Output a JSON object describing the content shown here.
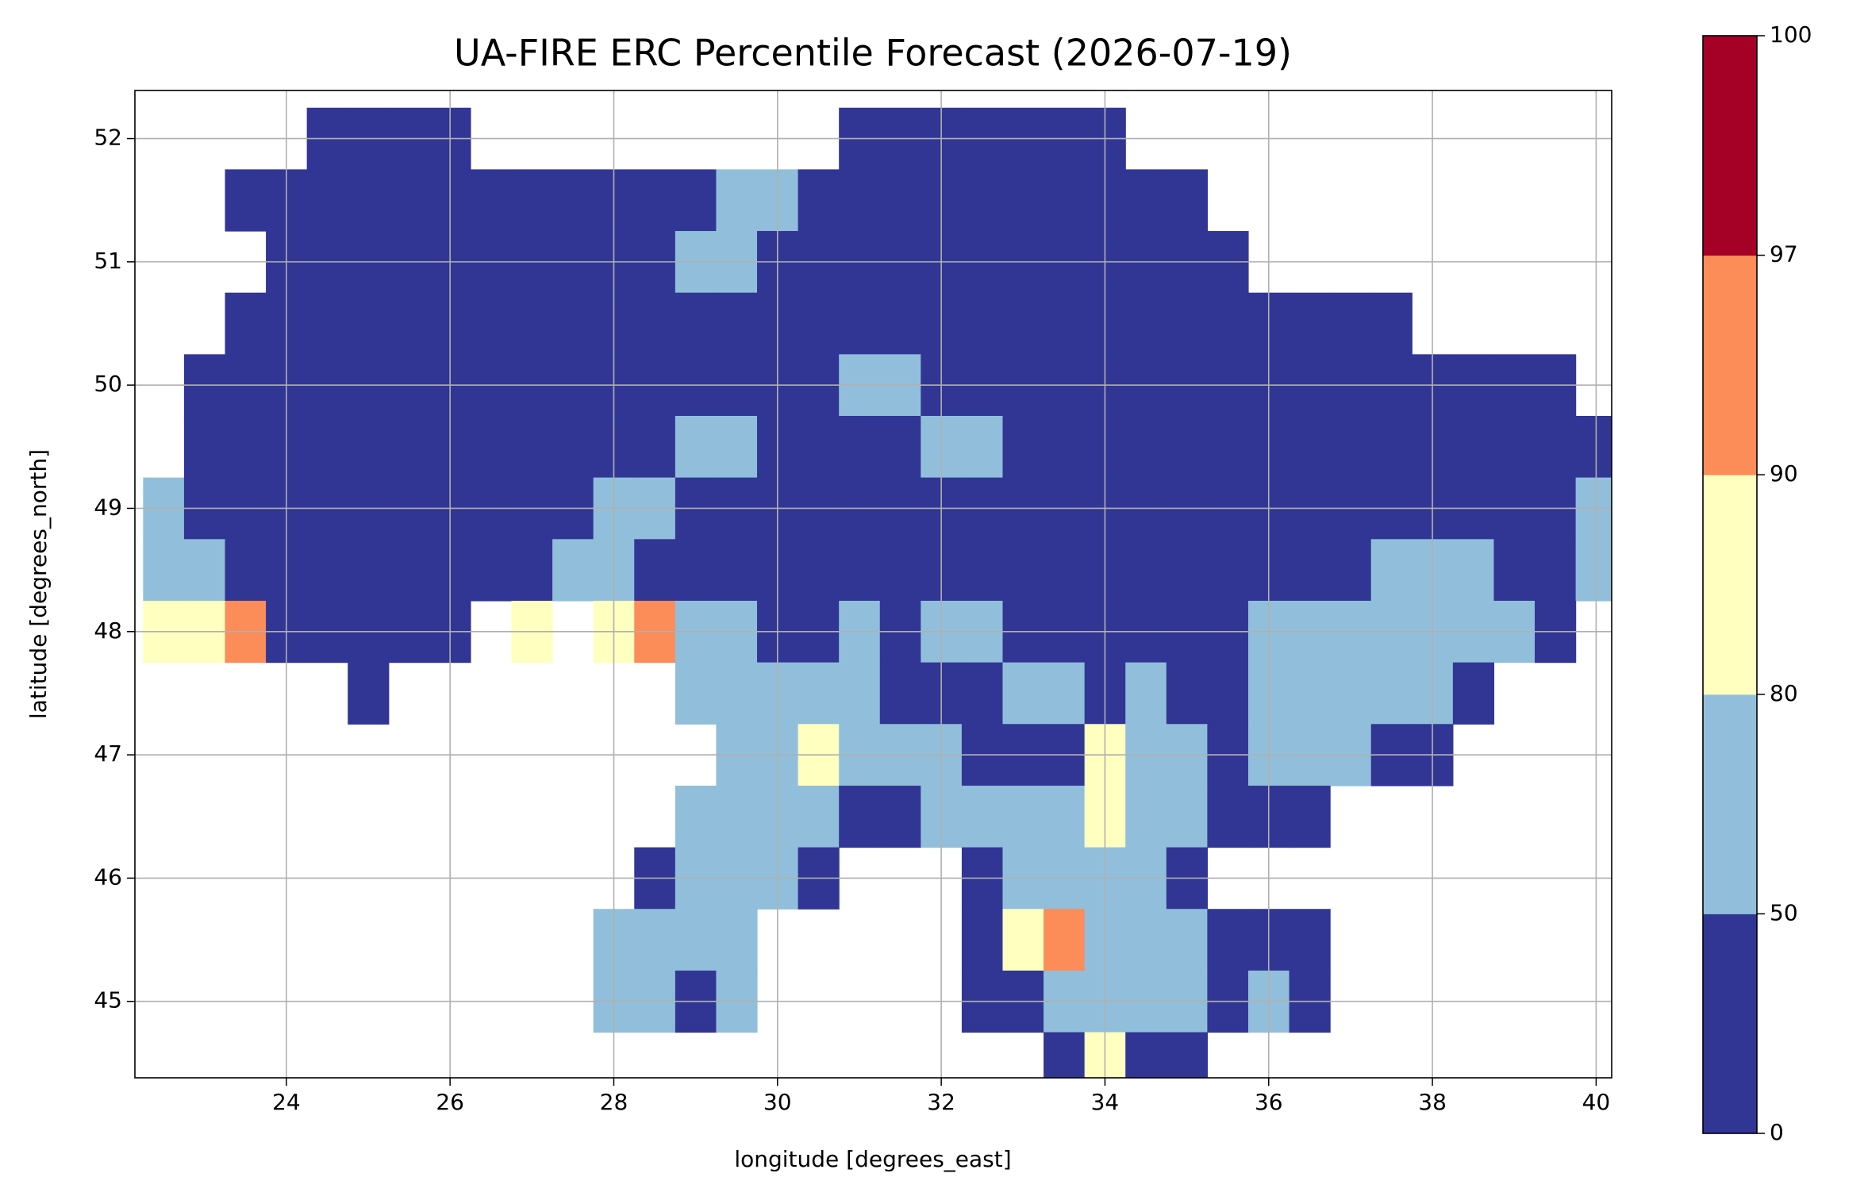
{
  "chart_data": {
    "type": "heatmap",
    "title": "UA-FIRE ERC Percentile Forecast (2026-07-19)",
    "xlabel": "longitude [degrees_east]",
    "ylabel": "latitude [degrees_north]",
    "xlim": [
      22.15,
      40.19
    ],
    "ylim": [
      44.38,
      52.39
    ],
    "xticks": [
      24,
      26,
      28,
      30,
      32,
      34,
      36,
      38,
      40
    ],
    "yticks": [
      45,
      46,
      47,
      48,
      49,
      50,
      51,
      52
    ],
    "grid": true,
    "cells": {
      "lon": [
        22.5,
        23,
        23.5,
        24,
        24.5,
        25,
        25.5,
        26,
        26.5,
        27,
        27.5,
        28,
        28.5,
        29,
        29.5,
        30,
        30.5,
        31,
        31.5,
        32,
        32.5,
        33,
        33.5,
        34,
        34.5,
        35,
        35.5,
        36,
        36.5,
        37,
        37.5,
        38,
        38.5,
        39,
        39.5,
        40
      ],
      "lat": [
        52,
        51.5,
        51,
        50.5,
        50,
        49.5,
        49,
        48.5,
        48,
        47.5,
        47,
        46.5,
        46,
        45.5,
        45,
        44.5
      ],
      "values": [
        [
          null,
          null,
          null,
          null,
          25,
          25,
          25,
          25,
          null,
          null,
          null,
          null,
          null,
          null,
          null,
          null,
          null,
          25,
          25,
          25,
          25,
          25,
          25,
          25,
          null,
          null,
          null,
          null,
          null,
          null,
          null,
          null,
          null,
          null,
          null,
          null
        ],
        [
          null,
          null,
          25,
          25,
          25,
          25,
          25,
          25,
          25,
          25,
          25,
          25,
          25,
          25,
          65,
          65,
          25,
          25,
          25,
          25,
          25,
          25,
          25,
          25,
          25,
          25,
          null,
          null,
          null,
          null,
          null,
          null,
          null,
          null,
          null,
          null
        ],
        [
          null,
          null,
          null,
          25,
          25,
          25,
          25,
          25,
          25,
          25,
          25,
          25,
          25,
          65,
          65,
          25,
          25,
          25,
          25,
          25,
          25,
          25,
          25,
          25,
          25,
          25,
          25,
          null,
          null,
          null,
          null,
          null,
          null,
          null,
          null,
          null
        ],
        [
          null,
          null,
          25,
          25,
          25,
          25,
          25,
          25,
          25,
          25,
          25,
          25,
          25,
          25,
          25,
          25,
          25,
          25,
          25,
          25,
          25,
          25,
          25,
          25,
          25,
          25,
          25,
          25,
          25,
          25,
          25,
          null,
          null,
          null,
          null,
          null
        ],
        [
          null,
          25,
          25,
          25,
          25,
          25,
          25,
          25,
          25,
          25,
          25,
          25,
          25,
          25,
          25,
          25,
          25,
          65,
          65,
          25,
          25,
          25,
          25,
          25,
          25,
          25,
          25,
          25,
          25,
          25,
          25,
          25,
          25,
          25,
          25,
          null
        ],
        [
          null,
          25,
          25,
          25,
          25,
          25,
          25,
          25,
          25,
          25,
          25,
          25,
          25,
          65,
          65,
          25,
          25,
          25,
          25,
          65,
          65,
          25,
          25,
          25,
          25,
          25,
          25,
          25,
          25,
          25,
          25,
          25,
          25,
          25,
          25,
          25
        ],
        [
          65,
          25,
          25,
          25,
          25,
          25,
          25,
          25,
          25,
          25,
          25,
          65,
          65,
          25,
          25,
          25,
          25,
          25,
          25,
          25,
          25,
          25,
          25,
          25,
          25,
          25,
          25,
          25,
          25,
          25,
          25,
          25,
          25,
          25,
          25,
          65
        ],
        [
          65,
          65,
          25,
          25,
          25,
          25,
          25,
          25,
          25,
          25,
          65,
          65,
          25,
          25,
          25,
          25,
          25,
          25,
          25,
          25,
          25,
          25,
          25,
          25,
          25,
          25,
          25,
          25,
          25,
          25,
          65,
          65,
          65,
          25,
          25,
          65
        ],
        [
          85,
          85,
          94,
          25,
          25,
          25,
          25,
          25,
          null,
          85,
          null,
          85,
          94,
          65,
          65,
          25,
          25,
          65,
          25,
          65,
          65,
          25,
          25,
          25,
          25,
          25,
          25,
          65,
          65,
          65,
          65,
          65,
          65,
          65,
          25,
          null
        ],
        [
          null,
          null,
          null,
          null,
          null,
          25,
          null,
          null,
          null,
          null,
          null,
          null,
          null,
          65,
          65,
          65,
          65,
          65,
          25,
          25,
          25,
          65,
          65,
          25,
          65,
          25,
          25,
          65,
          65,
          65,
          65,
          65,
          25,
          null,
          null,
          null
        ],
        [
          null,
          null,
          null,
          null,
          null,
          null,
          null,
          null,
          null,
          null,
          null,
          null,
          null,
          null,
          65,
          65,
          85,
          65,
          65,
          65,
          25,
          25,
          25,
          85,
          65,
          65,
          25,
          65,
          65,
          65,
          25,
          25,
          null,
          null,
          null,
          null
        ],
        [
          null,
          null,
          null,
          null,
          null,
          null,
          null,
          null,
          null,
          null,
          null,
          null,
          null,
          65,
          65,
          65,
          65,
          25,
          25,
          65,
          65,
          65,
          65,
          85,
          65,
          65,
          25,
          25,
          25,
          null,
          null,
          null,
          null,
          null,
          null,
          null
        ],
        [
          null,
          null,
          null,
          null,
          null,
          null,
          null,
          null,
          null,
          null,
          null,
          null,
          25,
          65,
          65,
          65,
          25,
          null,
          null,
          null,
          25,
          65,
          65,
          65,
          65,
          25,
          null,
          null,
          null,
          null,
          null,
          null,
          null,
          null,
          null,
          null
        ],
        [
          null,
          null,
          null,
          null,
          null,
          null,
          null,
          null,
          null,
          null,
          null,
          65,
          65,
          65,
          65,
          null,
          null,
          null,
          null,
          null,
          25,
          85,
          94,
          65,
          65,
          65,
          25,
          25,
          25,
          null,
          null,
          null,
          null,
          null,
          null,
          null
        ],
        [
          null,
          null,
          null,
          null,
          null,
          null,
          null,
          null,
          null,
          null,
          null,
          65,
          65,
          25,
          65,
          null,
          null,
          null,
          null,
          null,
          25,
          25,
          65,
          65,
          65,
          65,
          25,
          65,
          25,
          null,
          null,
          null,
          null,
          null,
          null,
          null
        ],
        [
          null,
          null,
          null,
          null,
          null,
          null,
          null,
          null,
          null,
          null,
          null,
          null,
          null,
          null,
          null,
          null,
          null,
          null,
          null,
          null,
          null,
          null,
          25,
          85,
          25,
          25,
          null,
          null,
          null,
          null,
          null,
          null,
          null,
          null,
          null,
          null
        ]
      ]
    },
    "colorbar": {
      "bounds": [
        0,
        50,
        80,
        90,
        97,
        100
      ],
      "colors": [
        "#313695",
        "#91bfdb",
        "#ffffbf",
        "#fc8d59",
        "#a50026"
      ]
    }
  }
}
